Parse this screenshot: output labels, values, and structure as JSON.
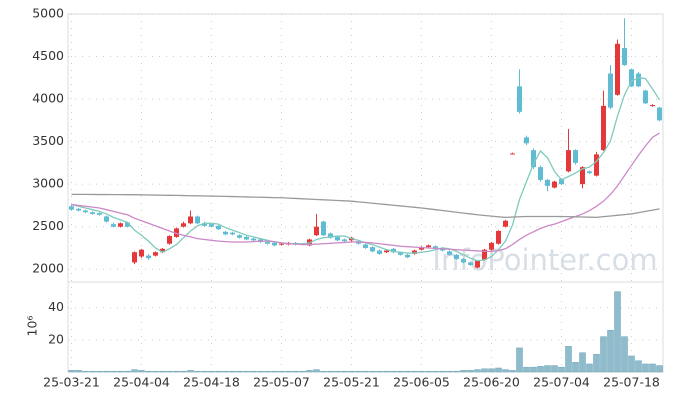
{
  "chart_data": {
    "type": "candlestick",
    "categories": [
      "25-03-21",
      null,
      null,
      null,
      null,
      null,
      null,
      null,
      null,
      null,
      "25-04-04",
      null,
      null,
      null,
      null,
      null,
      null,
      null,
      null,
      null,
      "25-04-18",
      null,
      null,
      null,
      null,
      null,
      null,
      null,
      null,
      null,
      "25-05-07",
      null,
      null,
      null,
      null,
      null,
      null,
      null,
      null,
      null,
      "25-05-21",
      null,
      null,
      null,
      null,
      null,
      null,
      null,
      null,
      null,
      "25-06-05",
      null,
      null,
      null,
      null,
      null,
      null,
      null,
      null,
      null,
      "25-06-20",
      null,
      null,
      null,
      null,
      null,
      null,
      null,
      null,
      null,
      "25-07-04",
      null,
      null,
      null,
      null,
      null,
      null,
      null,
      null,
      null,
      "25-07-18",
      null,
      null,
      null,
      null
    ],
    "open": [
      2740,
      2710,
      2690,
      2670,
      2660,
      2620,
      2530,
      2500,
      2550,
      2080,
      2150,
      2160,
      2160,
      2200,
      2300,
      2380,
      2500,
      2540,
      2620,
      2540,
      2530,
      2510,
      2440,
      2430,
      2400,
      2380,
      2360,
      2350,
      2320,
      2310,
      2290,
      2290,
      2310,
      2300,
      2280,
      2400,
      2560,
      2420,
      2380,
      2350,
      2340,
      2330,
      2290,
      2260,
      2220,
      2200,
      2240,
      2200,
      2170,
      2180,
      2230,
      2260,
      2270,
      2250,
      2210,
      2170,
      2120,
      2080,
      2020,
      2110,
      2230,
      2300,
      2500,
      3360,
      4150,
      3550,
      3400,
      3200,
      3050,
      2960,
      3060,
      3150,
      3400,
      3000,
      3150,
      3100,
      3400,
      4300,
      4050,
      4600,
      4350,
      4300,
      4100,
      3920,
      3900
    ],
    "high": [
      2760,
      2720,
      2700,
      2680,
      2670,
      2630,
      2550,
      2550,
      2560,
      2210,
      2240,
      2180,
      2210,
      2250,
      2400,
      2490,
      2560,
      2690,
      2630,
      2560,
      2540,
      2520,
      2450,
      2440,
      2410,
      2390,
      2370,
      2360,
      2330,
      2320,
      2310,
      2320,
      2320,
      2310,
      2360,
      2650,
      2570,
      2430,
      2390,
      2360,
      2380,
      2340,
      2300,
      2270,
      2230,
      2230,
      2250,
      2210,
      2180,
      2230,
      2270,
      2290,
      2280,
      2260,
      2220,
      2180,
      2130,
      2090,
      2110,
      2240,
      2320,
      2460,
      2580,
      3370,
      4350,
      3570,
      3420,
      3220,
      3060,
      3040,
      3070,
      3650,
      3410,
      3210,
      3160,
      3380,
      4100,
      4400,
      4700,
      4950,
      4360,
      4320,
      4110,
      3940,
      3910
    ],
    "low": [
      2690,
      2680,
      2660,
      2640,
      2630,
      2550,
      2490,
      2490,
      2490,
      2060,
      2130,
      2110,
      2150,
      2190,
      2290,
      2370,
      2490,
      2530,
      2530,
      2500,
      2490,
      2460,
      2400,
      2400,
      2360,
      2340,
      2330,
      2310,
      2290,
      2270,
      2280,
      2280,
      2280,
      2280,
      2270,
      2390,
      2390,
      2360,
      2330,
      2320,
      2320,
      2290,
      2240,
      2200,
      2170,
      2190,
      2190,
      2160,
      2130,
      2170,
      2220,
      2250,
      2240,
      2210,
      2160,
      2110,
      2070,
      2040,
      2010,
      2100,
      2220,
      2290,
      2490,
      3350,
      3830,
      3460,
      3180,
      3030,
      2920,
      2950,
      2990,
      3140,
      3230,
      2950,
      3120,
      3090,
      3390,
      3880,
      4040,
      4390,
      4140,
      4140,
      3940,
      3910,
      3740
    ],
    "close": [
      2700,
      2690,
      2670,
      2650,
      2640,
      2560,
      2500,
      2540,
      2500,
      2200,
      2230,
      2130,
      2200,
      2240,
      2390,
      2480,
      2540,
      2620,
      2540,
      2510,
      2500,
      2470,
      2410,
      2410,
      2370,
      2350,
      2340,
      2320,
      2300,
      2280,
      2300,
      2310,
      2290,
      2290,
      2350,
      2500,
      2400,
      2370,
      2340,
      2330,
      2370,
      2300,
      2250,
      2210,
      2180,
      2220,
      2200,
      2170,
      2140,
      2220,
      2260,
      2280,
      2250,
      2220,
      2170,
      2120,
      2080,
      2050,
      2100,
      2230,
      2310,
      2450,
      2570,
      3360,
      3850,
      3480,
      3200,
      3050,
      2980,
      3030,
      3000,
      3400,
      3250,
      3200,
      3130,
      3350,
      3920,
      3900,
      4650,
      4400,
      4150,
      4150,
      3950,
      3930,
      3750
    ],
    "up_color": "#e5383b",
    "down_color": "#5fbcd3",
    "ylim": [
      1850,
      5000
    ],
    "yticks": [
      2000,
      2500,
      3000,
      3500,
      4000,
      4500,
      5000
    ],
    "grid": true,
    "lines": [
      {
        "color": "#7fcbbd",
        "values": [
          2760,
          2740,
          2720,
          2700,
          2680,
          2650,
          2610,
          2580,
          2550,
          2460,
          2400,
          2330,
          2250,
          2200,
          2240,
          2290,
          2370,
          2450,
          2510,
          2540,
          2540,
          2530,
          2490,
          2460,
          2430,
          2400,
          2380,
          2360,
          2340,
          2320,
          2310,
          2300,
          2300,
          2300,
          2310,
          2350,
          2370,
          2380,
          2390,
          2390,
          2360,
          2340,
          2310,
          2290,
          2260,
          2230,
          2210,
          2200,
          2190,
          2190,
          2200,
          2210,
          2230,
          2250,
          2240,
          2210,
          2170,
          2130,
          2100,
          2110,
          2150,
          2230,
          2330,
          2520,
          2820,
          3030,
          3240,
          3390,
          3310,
          3150,
          3050,
          3090,
          3130,
          3180,
          3200,
          3270,
          3370,
          3510,
          3800,
          4050,
          4210,
          4250,
          4240,
          4120,
          3990
        ]
      },
      {
        "color": "#cc88c8",
        "values": [
          2760,
          2750,
          2740,
          2730,
          2720,
          2700,
          2680,
          2660,
          2640,
          2600,
          2570,
          2540,
          2510,
          2480,
          2450,
          2420,
          2400,
          2380,
          2360,
          2350,
          2340,
          2330,
          2325,
          2320,
          2320,
          2320,
          2325,
          2330,
          2330,
          2325,
          2310,
          2300,
          2295,
          2290,
          2290,
          2295,
          2300,
          2305,
          2310,
          2315,
          2320,
          2320,
          2315,
          2310,
          2300,
          2290,
          2280,
          2270,
          2265,
          2260,
          2255,
          2250,
          2245,
          2240,
          2235,
          2230,
          2225,
          2220,
          2215,
          2210,
          2210,
          2220,
          2240,
          2290,
          2350,
          2400,
          2440,
          2480,
          2510,
          2530,
          2560,
          2590,
          2620,
          2650,
          2690,
          2740,
          2800,
          2880,
          2980,
          3100,
          3220,
          3340,
          3450,
          3550,
          3600
        ]
      },
      {
        "color": "#9a9a9a",
        "values": [
          2880,
          2880,
          2880,
          2879,
          2878,
          2878,
          2877,
          2877,
          2876,
          2876,
          2875,
          2873,
          2872,
          2870,
          2869,
          2868,
          2866,
          2864,
          2863,
          2861,
          2860,
          2858,
          2856,
          2854,
          2852,
          2850,
          2848,
          2846,
          2844,
          2842,
          2840,
          2836,
          2832,
          2828,
          2824,
          2820,
          2816,
          2812,
          2808,
          2804,
          2800,
          2792,
          2784,
          2776,
          2768,
          2760,
          2752,
          2744,
          2736,
          2728,
          2720,
          2710,
          2700,
          2690,
          2680,
          2670,
          2660,
          2650,
          2640,
          2632,
          2624,
          2616,
          2610,
          2613,
          2617,
          2620,
          2620,
          2620,
          2620,
          2620,
          2620,
          2618,
          2616,
          2614,
          2612,
          2610,
          2618,
          2626,
          2634,
          2642,
          2650,
          2665,
          2680,
          2695,
          2710
        ]
      }
    ],
    "volume": {
      "type": "bar",
      "color": "#8fbccc",
      "ylabel": "10⁶",
      "ylim": [
        0,
        56
      ],
      "yticks": [
        20,
        40
      ],
      "values": [
        1,
        1,
        0.5,
        0.5,
        0.5,
        0.5,
        0.5,
        0.5,
        0.5,
        1.5,
        1,
        0.5,
        0.5,
        0.5,
        0.5,
        0.5,
        0.5,
        1,
        0.5,
        0.5,
        0.5,
        0.5,
        0.5,
        0.5,
        0.5,
        0.5,
        0.5,
        0.5,
        0.5,
        0.5,
        0.5,
        0.5,
        0.5,
        0.5,
        1,
        1.5,
        0.5,
        0.5,
        0.5,
        0.5,
        0.5,
        0.5,
        0.5,
        0.5,
        0.5,
        0.5,
        0.5,
        0.5,
        0.5,
        0.5,
        0.5,
        0.5,
        0.5,
        0.5,
        0.5,
        0.5,
        1,
        1,
        1.5,
        2,
        2,
        2.5,
        1.5,
        1,
        15,
        3,
        3,
        3.5,
        4,
        4,
        3,
        16,
        6,
        12,
        5,
        11,
        22,
        26,
        50,
        22,
        10,
        7,
        5,
        5,
        4
      ]
    },
    "watermark": "InfoPointer.com"
  }
}
